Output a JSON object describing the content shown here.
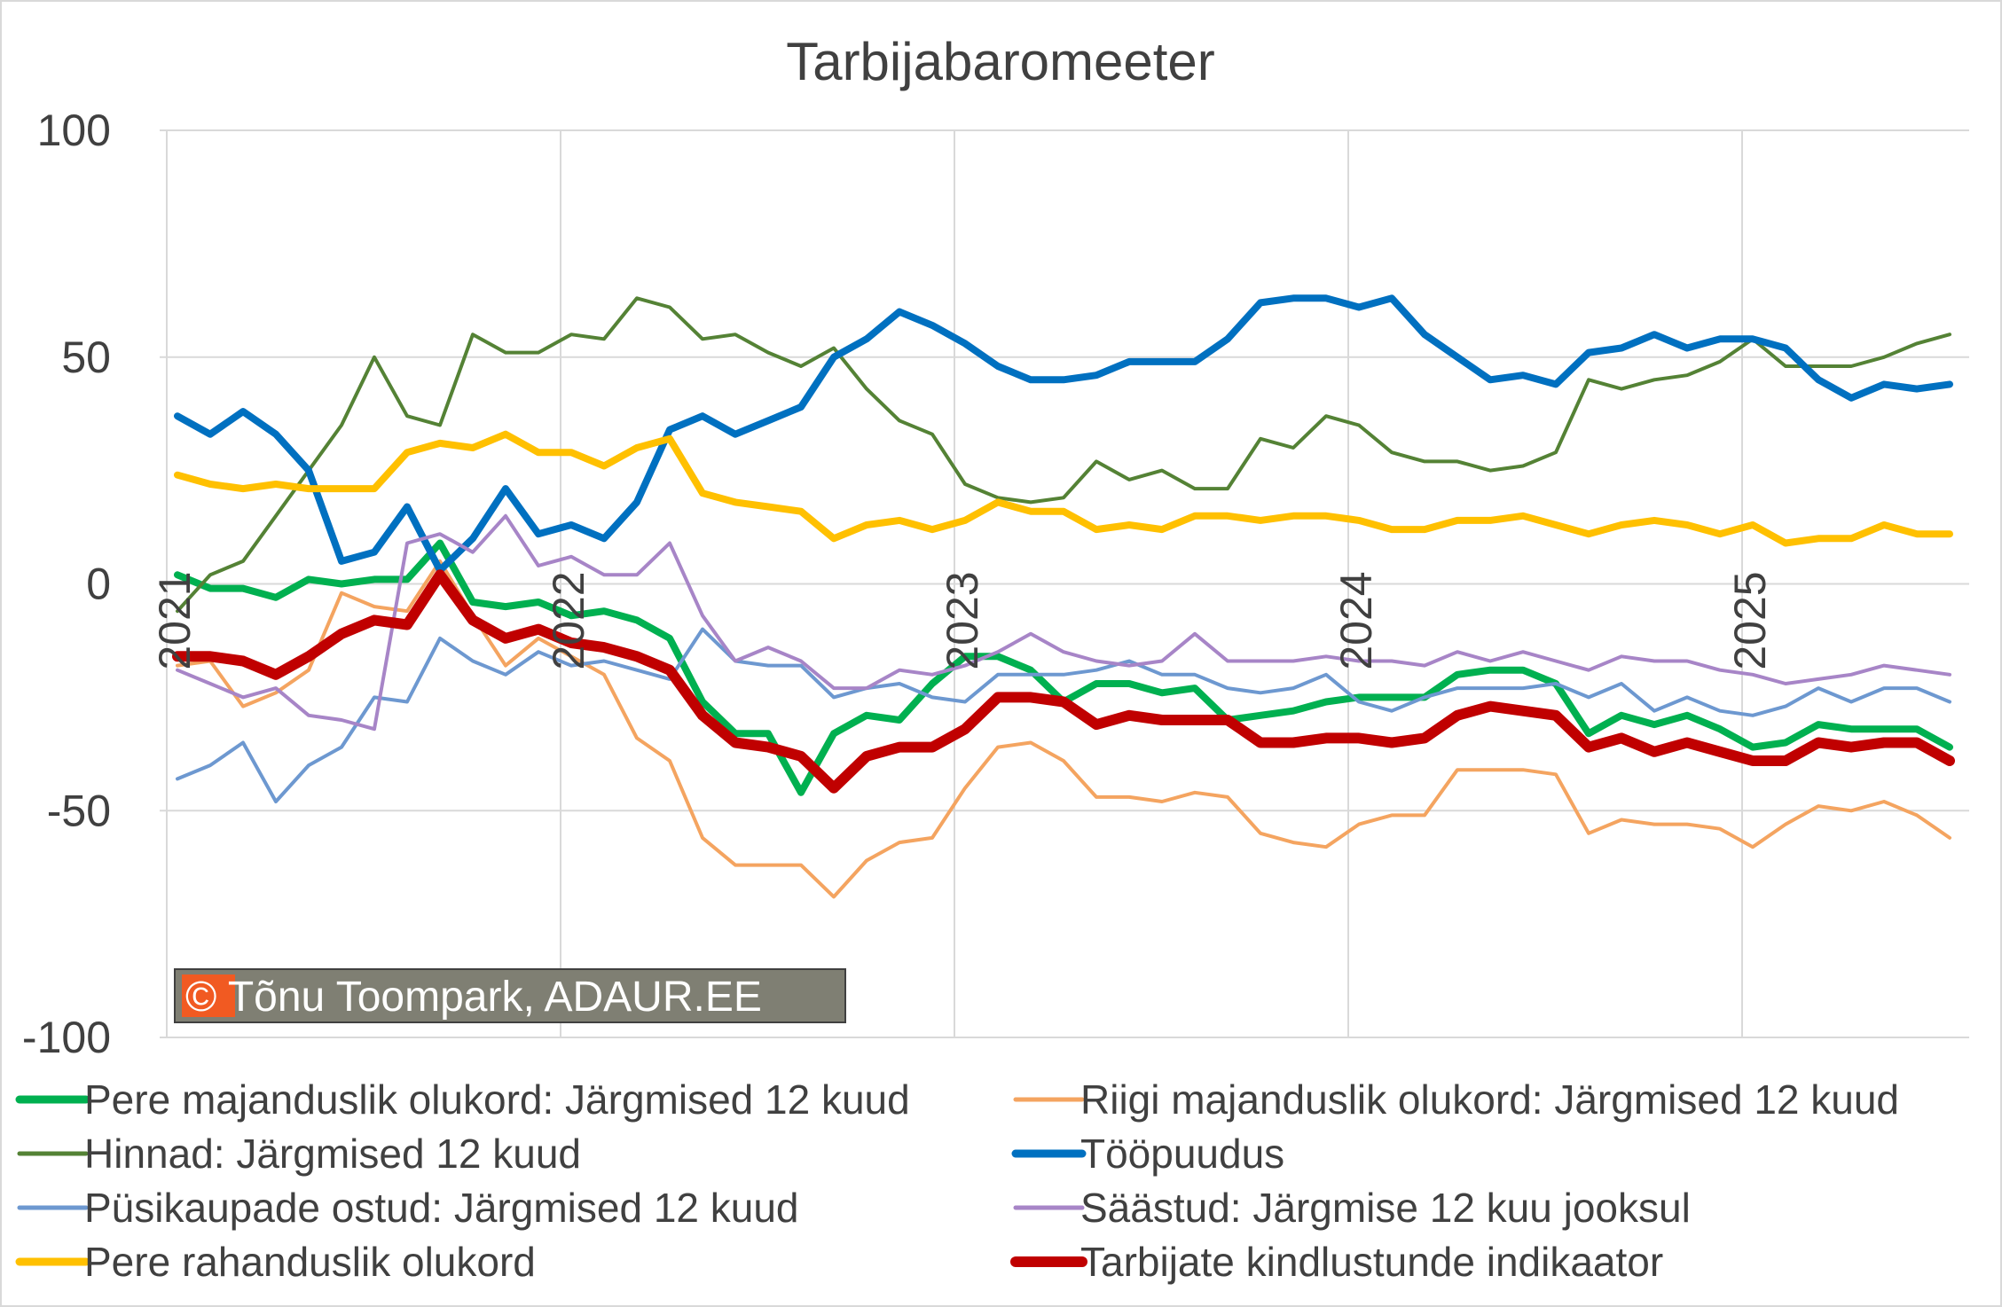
{
  "chart_data": {
    "type": "line",
    "title": "Tarbijabaromeeter",
    "xlabel": "",
    "ylabel": "",
    "ylim": [
      -100,
      100
    ],
    "yticks": [
      100,
      50,
      0,
      -50,
      -100
    ],
    "ytick_labels": [
      "100",
      "50",
      "0",
      "-50",
      "-100"
    ],
    "x_start": "2021-01",
    "x_period": "month",
    "xtick_labels": [
      "2021",
      "2022",
      "2023",
      "2024",
      "2025"
    ],
    "grid": true,
    "legend_position": "bottom",
    "watermark": "© Tõnu Toompark, ADAUR.EE",
    "series": [
      {
        "name": "Pere majanduslik olukord: Järgmised 12 kuud",
        "color": "#00b050",
        "style": "medium",
        "values": [
          2,
          -1,
          -1,
          -3,
          1,
          0,
          1,
          1,
          9,
          -4,
          -5,
          -4,
          -7,
          -6,
          -8,
          -12,
          -26,
          -33,
          -33,
          -46,
          -33,
          -29,
          -30,
          -22,
          -16,
          -16,
          -19,
          -26,
          -22,
          -22,
          -24,
          -23,
          -30,
          -29,
          -28,
          -26,
          -25,
          -25,
          -25,
          -20,
          -19,
          -19,
          -22,
          -33,
          -29,
          -31,
          -29,
          -32,
          -36,
          -35,
          -31,
          -32,
          -32,
          -32,
          -36
        ]
      },
      {
        "name": "Riigi majanduslik olukord: Järgmised 12 kuud",
        "color": "#f4a460",
        "style": "thin",
        "values": [
          -18,
          -17,
          -27,
          -24,
          -19,
          -2,
          -5,
          -6,
          5,
          -7,
          -18,
          -12,
          -16,
          -20,
          -34,
          -39,
          -56,
          -62,
          -62,
          -62,
          -69,
          -61,
          -57,
          -56,
          -45,
          -36,
          -35,
          -39,
          -47,
          -47,
          -48,
          -46,
          -47,
          -55,
          -57,
          -58,
          -53,
          -51,
          -51,
          -41,
          -41,
          -41,
          -42,
          -55,
          -52,
          -53,
          -53,
          -54,
          -58,
          -53,
          -49,
          -50,
          -48,
          -51,
          -56
        ]
      },
      {
        "name": "Hinnad: Järgmised 12 kuud",
        "color": "#548235",
        "style": "thin",
        "values": [
          -6,
          2,
          5,
          15,
          25,
          35,
          50,
          37,
          35,
          55,
          51,
          51,
          55,
          54,
          63,
          61,
          54,
          55,
          51,
          48,
          52,
          43,
          36,
          33,
          22,
          19,
          18,
          19,
          27,
          23,
          25,
          21,
          21,
          32,
          30,
          37,
          35,
          29,
          27,
          27,
          25,
          26,
          29,
          45,
          43,
          45,
          46,
          49,
          54,
          48,
          48,
          48,
          50,
          53,
          55
        ]
      },
      {
        "name": "Tööpuudus",
        "color": "#0070c0",
        "style": "medium",
        "values": [
          37,
          33,
          38,
          33,
          25,
          5,
          7,
          17,
          3,
          10,
          21,
          11,
          13,
          10,
          18,
          34,
          37,
          33,
          36,
          39,
          50,
          54,
          60,
          57,
          53,
          48,
          45,
          45,
          46,
          49,
          49,
          49,
          54,
          62,
          63,
          63,
          61,
          63,
          55,
          50,
          45,
          46,
          44,
          51,
          52,
          55,
          52,
          54,
          54,
          52,
          45,
          41,
          44,
          43,
          44
        ]
      },
      {
        "name": "Püsikaupade ostud: Järgmised 12 kuud",
        "color": "#6d98d0",
        "style": "thin",
        "values": [
          -43,
          -40,
          -35,
          -48,
          -40,
          -36,
          -25,
          -26,
          -12,
          -17,
          -20,
          -15,
          -18,
          -17,
          -19,
          -21,
          -10,
          -17,
          -18,
          -18,
          -25,
          -23,
          -22,
          -25,
          -26,
          -20,
          -20,
          -20,
          -19,
          -17,
          -20,
          -20,
          -23,
          -24,
          -23,
          -20,
          -26,
          -28,
          -25,
          -23,
          -23,
          -23,
          -22,
          -25,
          -22,
          -28,
          -25,
          -28,
          -29,
          -27,
          -23,
          -26,
          -23,
          -23,
          -26
        ]
      },
      {
        "name": "Säästud: Järgmise 12 kuu jooksul",
        "color": "#a785c7",
        "style": "thin",
        "values": [
          -19,
          -22,
          -25,
          -23,
          -29,
          -30,
          -32,
          9,
          11,
          7,
          15,
          4,
          6,
          2,
          2,
          9,
          -7,
          -17,
          -14,
          -17,
          -23,
          -23,
          -19,
          -20,
          -18,
          -15,
          -11,
          -15,
          -17,
          -18,
          -17,
          -11,
          -17,
          -17,
          -17,
          -16,
          -17,
          -17,
          -18,
          -15,
          -17,
          -15,
          -17,
          -19,
          -16,
          -17,
          -17,
          -19,
          -20,
          -22,
          -21,
          -20,
          -18,
          -19,
          -20
        ]
      },
      {
        "name": "Pere rahanduslik olukord",
        "color": "#ffc000",
        "style": "medium",
        "values": [
          24,
          22,
          21,
          22,
          21,
          21,
          21,
          29,
          31,
          30,
          33,
          29,
          29,
          26,
          30,
          32,
          20,
          18,
          17,
          16,
          10,
          13,
          14,
          12,
          14,
          18,
          16,
          16,
          12,
          13,
          12,
          15,
          15,
          14,
          15,
          15,
          14,
          12,
          12,
          14,
          14,
          15,
          13,
          11,
          13,
          14,
          13,
          11,
          13,
          9,
          10,
          10,
          13,
          11,
          11
        ]
      },
      {
        "name": "Tarbijate kindlustunde indikaator",
        "color": "#c00000",
        "style": "thick",
        "values": [
          -16,
          -16,
          -17,
          -20,
          -16,
          -11,
          -8,
          -9,
          2,
          -8,
          -12,
          -10,
          -13,
          -14,
          -16,
          -19,
          -29,
          -35,
          -36,
          -38,
          -45,
          -38,
          -36,
          -36,
          -32,
          -25,
          -25,
          -26,
          -31,
          -29,
          -30,
          -30,
          -30,
          -35,
          -35,
          -34,
          -34,
          -35,
          -34,
          -29,
          -27,
          -28,
          -29,
          -36,
          -34,
          -37,
          -35,
          -37,
          -39,
          -39,
          -35,
          -36,
          -35,
          -35,
          -39
        ]
      }
    ]
  }
}
